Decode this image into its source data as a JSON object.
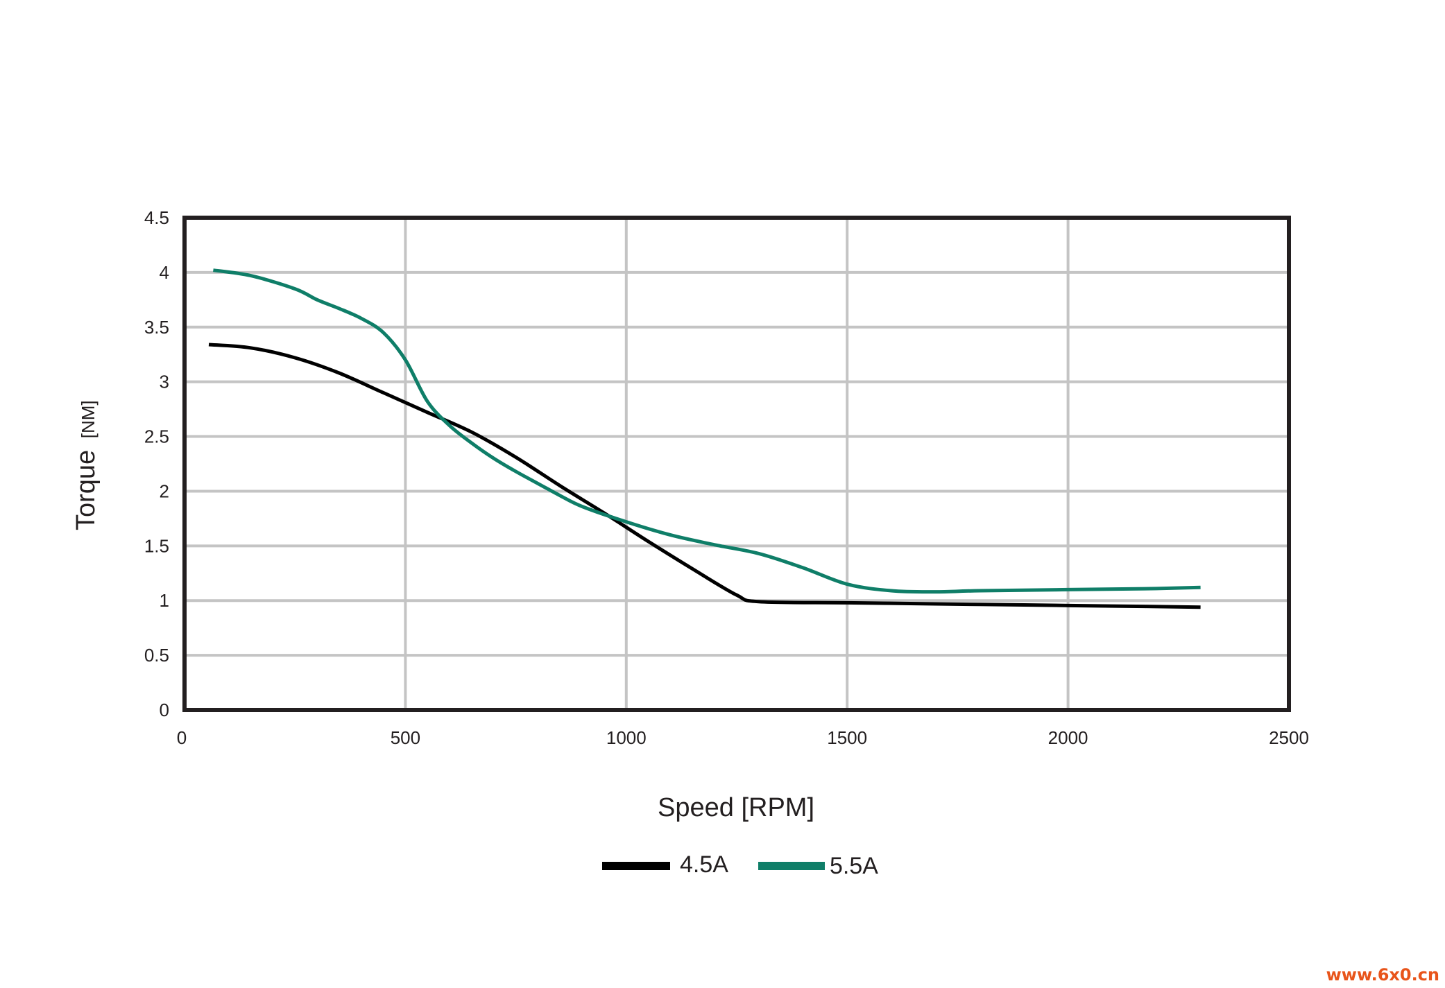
{
  "chart_data": {
    "type": "line",
    "xlabel": "Speed [RPM]",
    "ylabel": "Torque",
    "ylabel_unit": "[NM]",
    "xlim": [
      0,
      2500
    ],
    "ylim": [
      0,
      4.5
    ],
    "x_ticks": [
      "0",
      "500",
      "1000",
      "1500",
      "2000",
      "2500"
    ],
    "y_ticks": [
      "0",
      "0.5",
      "1",
      "1.5",
      "2",
      "2.5",
      "3",
      "3.5",
      "4",
      "4.5"
    ],
    "grid": true,
    "legend_position": "bottom-center",
    "series": [
      {
        "name": "4.5A",
        "color": "#000000",
        "x": [
          55,
          150,
          250,
          350,
          450,
          550,
          650,
          750,
          850,
          950,
          1050,
          1150,
          1250,
          1300,
          1500,
          1700,
          1900,
          2100,
          2300
        ],
        "y": [
          3.34,
          3.31,
          3.22,
          3.08,
          2.9,
          2.72,
          2.54,
          2.31,
          2.05,
          1.8,
          1.54,
          1.29,
          1.05,
          0.99,
          0.98,
          0.97,
          0.96,
          0.95,
          0.94
        ]
      },
      {
        "name": "5.5A",
        "color": "#0f7e68",
        "x": [
          65,
          150,
          250,
          300,
          350,
          400,
          450,
          500,
          550,
          600,
          650,
          700,
          750,
          800,
          850,
          900,
          1000,
          1100,
          1200,
          1300,
          1400,
          1500,
          1600,
          1700,
          1800,
          2000,
          2200,
          2300
        ],
        "y": [
          4.02,
          3.97,
          3.85,
          3.75,
          3.67,
          3.58,
          3.45,
          3.2,
          2.82,
          2.6,
          2.44,
          2.3,
          2.18,
          2.07,
          1.96,
          1.86,
          1.72,
          1.6,
          1.51,
          1.43,
          1.3,
          1.15,
          1.09,
          1.08,
          1.09,
          1.1,
          1.11,
          1.12
        ]
      }
    ]
  },
  "watermark": "www.6x0.cn"
}
